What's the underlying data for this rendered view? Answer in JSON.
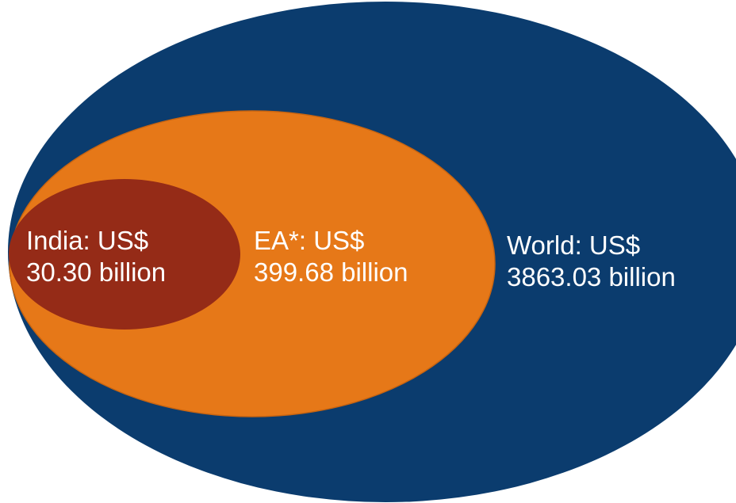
{
  "regions": [
    {
      "key": "world",
      "line1": "World: US$",
      "line2": "3863.03 billion",
      "color": "#0B3C6E"
    },
    {
      "key": "ea",
      "line1": "EA*: US$",
      "line2": "399.68 billion",
      "color": "#E67818"
    },
    {
      "key": "india",
      "line1": "India: US$",
      "line2": "30.30 billion",
      "color": "#952B17"
    }
  ]
}
